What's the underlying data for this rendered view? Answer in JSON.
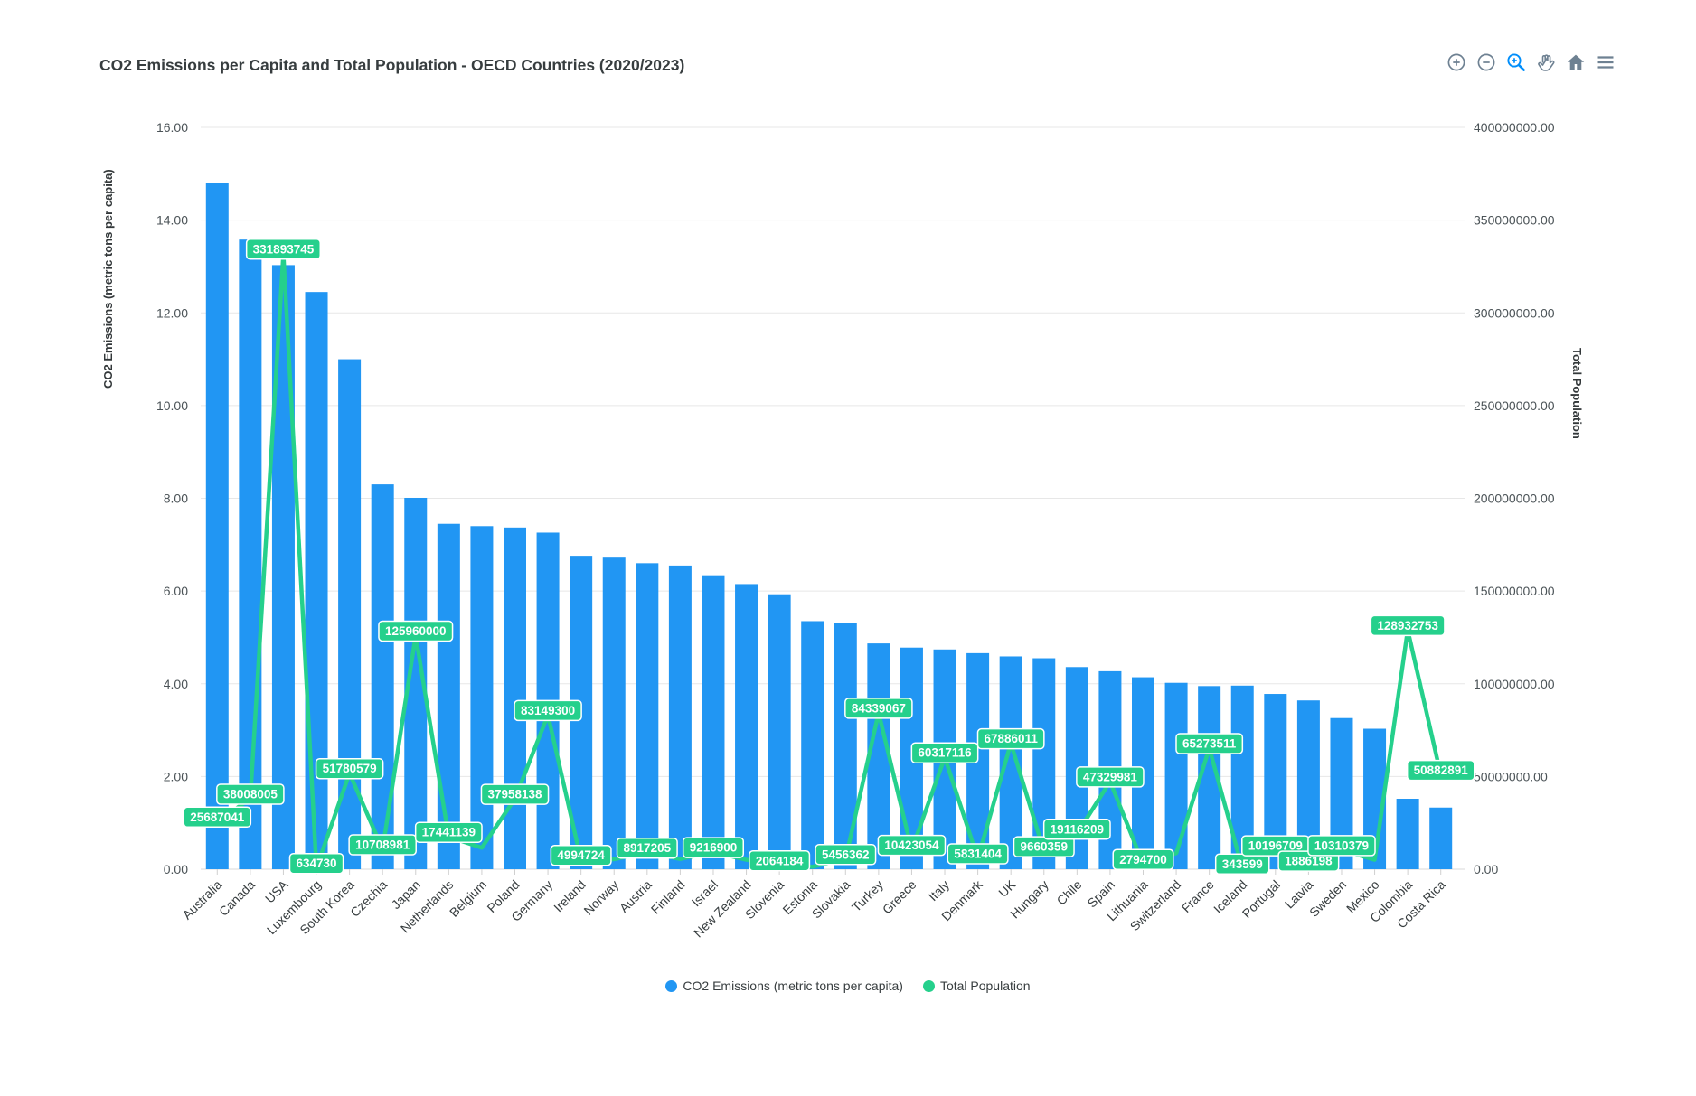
{
  "header": {
    "title": "CO2 Emissions per Capita and Total Population - OECD Countries (2020/2023)"
  },
  "toolbar": {
    "icons": [
      "zoom-in-icon",
      "zoom-out-icon",
      "selection-zoom-icon",
      "pan-icon",
      "home-icon",
      "menu-icon"
    ],
    "active_icon": "selection-zoom-icon",
    "icon_color": "#6e8192",
    "active_color": "#008efb"
  },
  "chart_data": {
    "type": "bar",
    "title": "CO2 Emissions per Capita and Total Population - OECD Countries (2020/2023)",
    "categories": [
      "Australia",
      "Canada",
      "USA",
      "Luxembourg",
      "South Korea",
      "Czechia",
      "Japan",
      "Netherlands",
      "Belgium",
      "Poland",
      "Germany",
      "Ireland",
      "Norway",
      "Austria",
      "Finland",
      "Israel",
      "New Zealand",
      "Slovenia",
      "Estonia",
      "Slovakia",
      "Turkey",
      "Greece",
      "Italy",
      "Denmark",
      "UK",
      "Hungary",
      "Chile",
      "Spain",
      "Lithuania",
      "Switzerland",
      "France",
      "Iceland",
      "Portugal",
      "Latvia",
      "Sweden",
      "Mexico",
      "Colombia",
      "Costa Rica"
    ],
    "series": [
      {
        "name": "CO2 Emissions (metric tons per capita)",
        "type": "bar",
        "axis": "left",
        "color": "#2196f3",
        "values": [
          14.8,
          13.58,
          13.03,
          12.45,
          11.0,
          8.3,
          8.01,
          7.45,
          7.4,
          7.37,
          7.26,
          6.76,
          6.72,
          6.6,
          6.55,
          6.34,
          6.15,
          5.93,
          5.35,
          5.32,
          4.87,
          4.78,
          4.74,
          4.66,
          4.59,
          4.55,
          4.36,
          4.27,
          4.14,
          4.02,
          3.95,
          3.96,
          3.78,
          3.64,
          3.26,
          3.03,
          1.52,
          1.33
        ]
      },
      {
        "name": "Total Population",
        "type": "line",
        "axis": "right",
        "color": "#25d08c",
        "values": [
          25687041,
          38008005,
          331893745,
          634730,
          51780579,
          10708981,
          125960000,
          17441139,
          11555997,
          37958138,
          83149300,
          4994724,
          5379475,
          8917205,
          5529543,
          9216900,
          5084300,
          2064184,
          1331057,
          5456362,
          84339067,
          10423054,
          60317116,
          5831404,
          67886011,
          9660359,
          19116209,
          47329981,
          2794700,
          8636896,
          65273511,
          343599,
          10196709,
          1886198,
          10310379,
          5094118,
          128932753,
          50882891
        ],
        "data_labels": [
          "25687041",
          "38008005",
          "331893745",
          "634730",
          "51780579",
          "10708981",
          "125960000",
          "17441139",
          null,
          "37958138",
          "83149300",
          "4994724",
          null,
          "8917205",
          null,
          "9216900",
          null,
          "2064184",
          null,
          "5456362",
          "84339067",
          "10423054",
          "60317116",
          "5831404",
          "67886011",
          "9660359",
          "19116209",
          "47329981",
          "2794700",
          null,
          "65273511",
          "343599",
          "10196709",
          "1886198",
          "10310379",
          null,
          "128932753",
          "50882891"
        ]
      }
    ],
    "ylabel_left": "CO2 Emissions (metric tons per capita)",
    "ylabel_right": "Total Population",
    "ylim_left": [
      0,
      16
    ],
    "ytick_step_left": 2,
    "ytick_format_left": "2dp",
    "ylim_right": [
      0,
      400000000
    ],
    "ytick_step_right": 50000000,
    "ytick_format_right": "2dp",
    "grid": "horizontal",
    "legend_position": "bottom",
    "xlabel_rotation": -45,
    "label_text_color": "#ffffff",
    "grid_color": "#e7e7e7",
    "axis_text_color": "#4b5357",
    "xaxis_text_color": "#373d3f"
  },
  "legend": {
    "items": [
      {
        "label": "CO2 Emissions (metric tons per capita)",
        "color": "#2196f3"
      },
      {
        "label": "Total Population",
        "color": "#25d08c"
      }
    ]
  }
}
